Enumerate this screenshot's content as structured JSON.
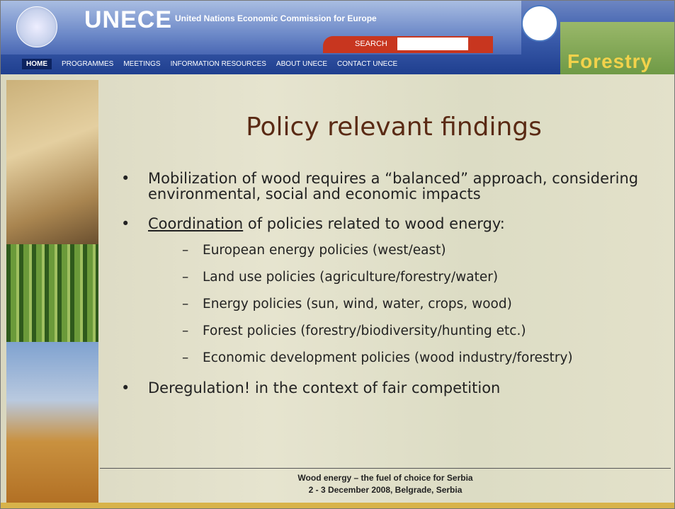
{
  "header": {
    "org": "UNECE",
    "org_full": "United Nations Economic Commission for Europe",
    "nav": [
      "HOME",
      "PROGRAMMES",
      "MEETINGS",
      "INFORMATION RESOURCES",
      "ABOUT UNECE",
      "CONTACT UNECE"
    ],
    "search": "SEARCH",
    "logo": "Forestry"
  },
  "slide": {
    "title": "Policy relevant findings",
    "bullets": [
      {
        "text": "Mobilization of wood requires a “balanced” approach, considering environmental, social and economic impacts"
      },
      {
        "underlined": "Coordination",
        "text": " of policies related to wood energy:",
        "subs": [
          "European energy policies (west/east)",
          "Land use policies (agriculture/forestry/water)",
          "Energy policies (sun, wind, water, crops, wood)",
          "Forest policies (forestry/biodiversity/hunting etc.)",
          "Economic development policies (wood industry/forestry)"
        ]
      },
      {
        "text": "Deregulation! in the context of fair competition"
      }
    ]
  },
  "footer": [
    "Wood energy – the fuel of choice for Serbia",
    "2 - 3 December 2008, Belgrade, Serbia"
  ]
}
